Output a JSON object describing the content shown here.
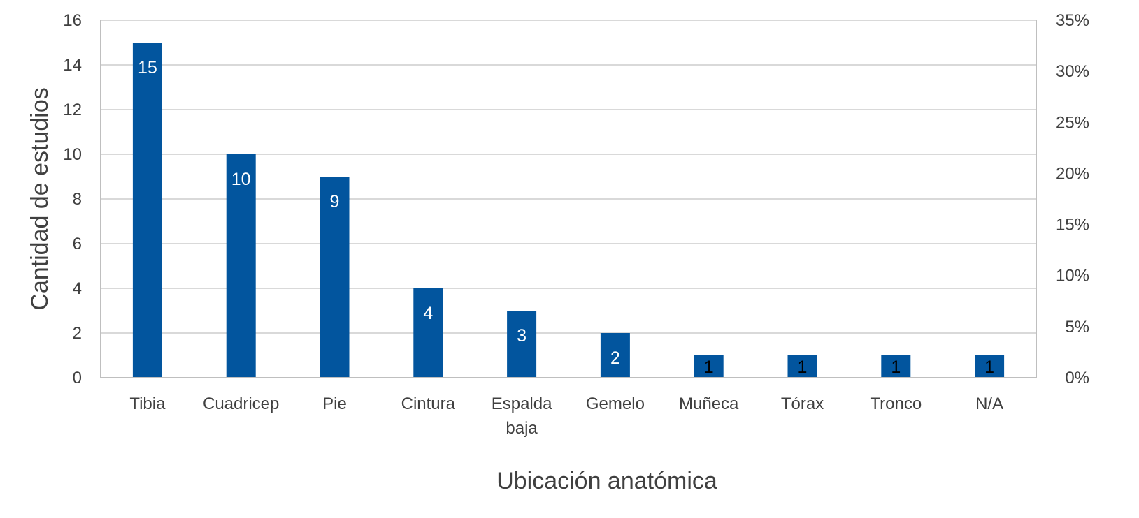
{
  "chart_data": {
    "type": "bar",
    "title": "",
    "xlabel": "Ubicación anatómica",
    "ylabel": "Cantidad de estudios",
    "categories": [
      "Tibia",
      "Cuadricep",
      "Pie",
      "Cintura",
      "Espalda baja",
      "Gemelo",
      "Muñeca",
      "Tórax",
      "Tronco",
      "N/A"
    ],
    "values": [
      15,
      10,
      9,
      4,
      3,
      2,
      1,
      1,
      1,
      1
    ],
    "data_labels": [
      "15",
      "10",
      "9",
      "4",
      "3",
      "2",
      "1",
      "1",
      "1",
      "1"
    ],
    "ylim": [
      0,
      16
    ],
    "yticks": [
      0,
      2,
      4,
      6,
      8,
      10,
      12,
      14,
      16
    ],
    "y2lim": [
      0,
      0.35
    ],
    "y2ticks": [
      "0%",
      "5%",
      "10%",
      "15%",
      "20%",
      "25%",
      "30%",
      "35%"
    ],
    "grid": true,
    "legend": "none",
    "colors": {
      "bar": "#02559E",
      "grid": "#D9D9D9",
      "axis": "#BFBFBF",
      "text": "#404040",
      "label_inside": "#FFFFFF",
      "label_outside": "#000000"
    }
  }
}
